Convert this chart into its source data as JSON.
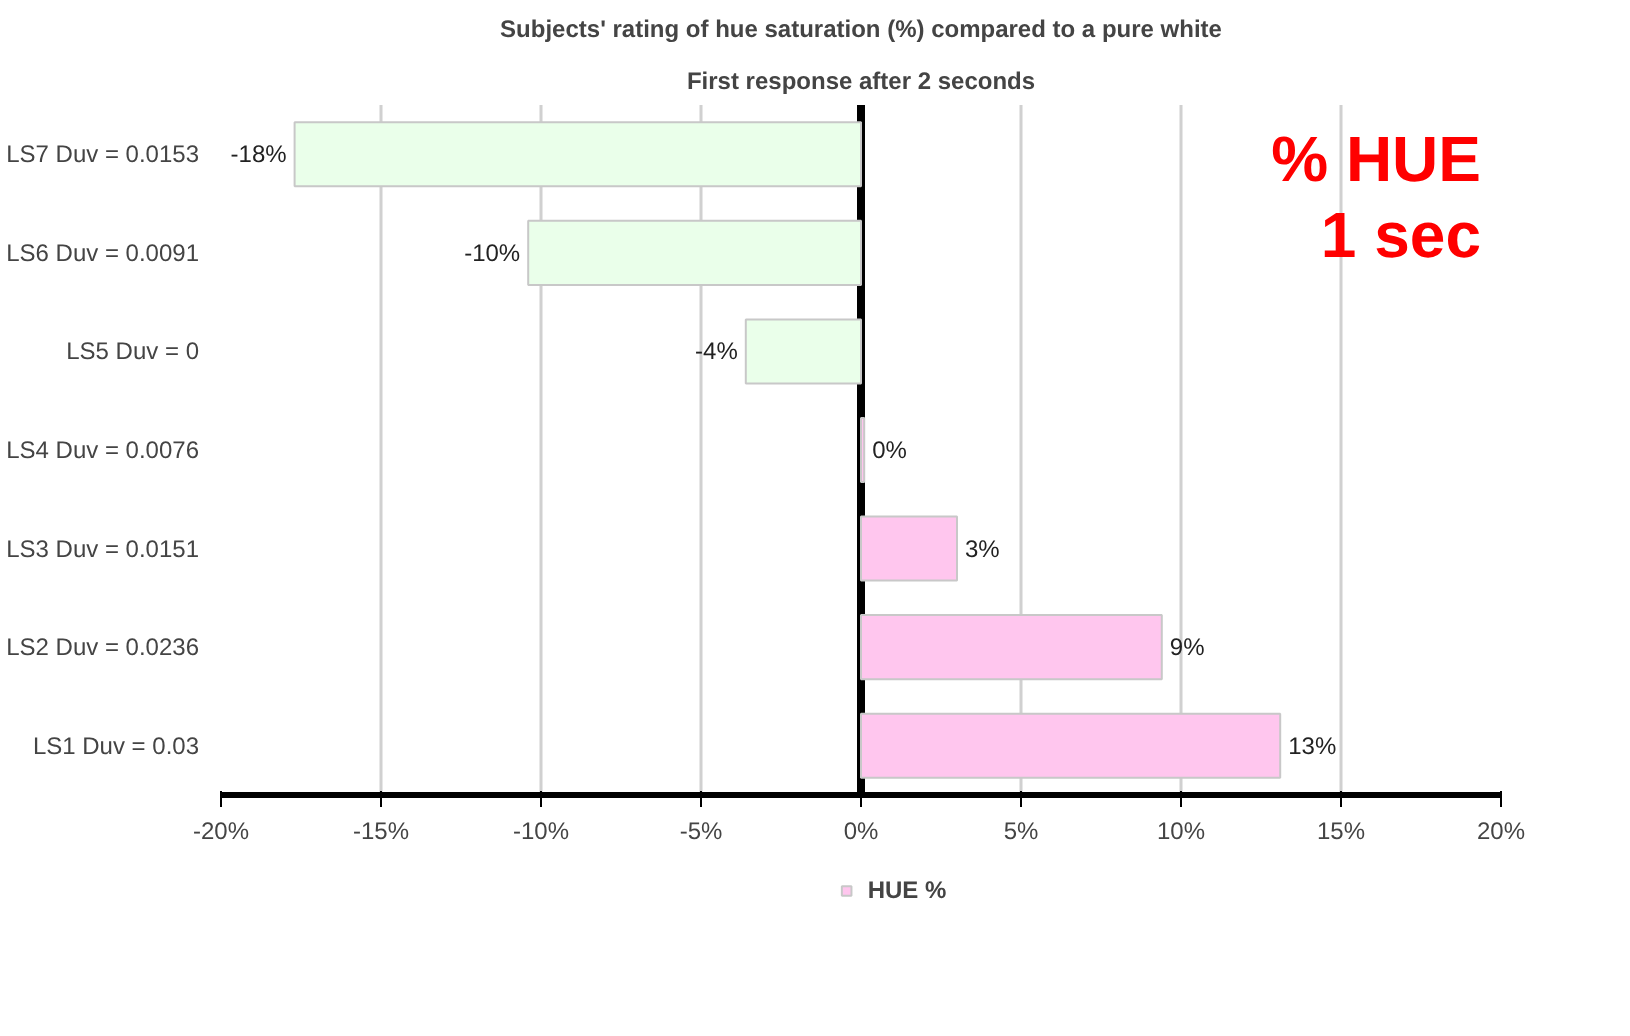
{
  "chart_data": {
    "type": "bar",
    "orientation": "horizontal",
    "title": "Subjects' rating of hue saturation (%) compared to a pure white",
    "subtitle": "First response after 2 seconds",
    "categories": [
      "LS7 Duv = 0.0153",
      "LS6 Duv = 0.0091",
      "LS5 Duv = 0",
      "LS4 Duv = 0.0076",
      "LS3 Duv = 0.0151",
      "LS2 Duv = 0.0236",
      "LS1 Duv = 0.03"
    ],
    "series": [
      {
        "name": "HUE %",
        "color": "#ffc6ee",
        "colors": [
          "#eaffea",
          "#eaffea",
          "#eaffea",
          "#ffc6ee",
          "#ffc6ee",
          "#ffc6ee",
          "#ffc6ee"
        ],
        "values": [
          -17.7,
          -10.4,
          -3.6,
          0.1,
          3.0,
          9.4,
          13.1
        ],
        "value_labels": [
          "-18%",
          "-10%",
          "-4%",
          "0%",
          "3%",
          "9%",
          "13%"
        ]
      }
    ],
    "xlim": [
      -20,
      20
    ],
    "xticks": [
      {
        "value": -20,
        "label": "-20%"
      },
      {
        "value": -15,
        "label": "-15%"
      },
      {
        "value": -10,
        "label": "-10%"
      },
      {
        "value": -5,
        "label": "-5%"
      },
      {
        "value": 0,
        "label": "0%"
      },
      {
        "value": 5,
        "label": "5%"
      },
      {
        "value": 10,
        "label": "10%"
      },
      {
        "value": 15,
        "label": "15%"
      },
      {
        "value": 20,
        "label": "20%"
      }
    ],
    "grid": "x",
    "legend": "bottom",
    "annotations": [
      "% HUE",
      "1 sec"
    ]
  }
}
